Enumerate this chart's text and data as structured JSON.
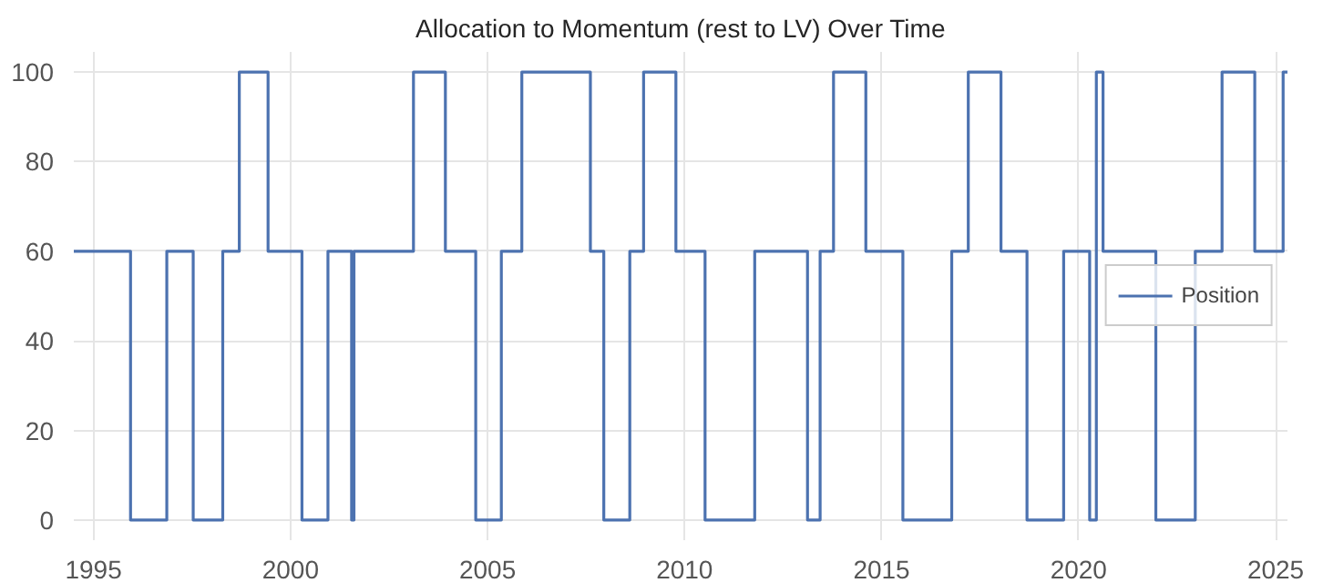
{
  "chart_data": {
    "type": "step",
    "title": "Allocation to Momentum (rest to LV) Over Time",
    "x": [
      1994.5,
      1995.94,
      1996.86,
      1997.53,
      1998.28,
      1998.7,
      1999.43,
      2000.29,
      2000.95,
      2001.55,
      2001.61,
      2003.12,
      2003.93,
      2004.7,
      2005.35,
      2005.87,
      2007.61,
      2007.95,
      2008.61,
      2008.96,
      2009.78,
      2010.52,
      2011.78,
      2013.12,
      2013.44,
      2013.78,
      2014.6,
      2015.54,
      2016.78,
      2017.2,
      2018.03,
      2018.69,
      2019.62,
      2020.28,
      2020.45,
      2020.62,
      2021.96,
      2022.96,
      2023.64,
      2024.47,
      2025.19,
      2025.3
    ],
    "series": [
      {
        "name": "Position",
        "color": "#4c72b0",
        "values": [
          60,
          0,
          60,
          0,
          60,
          100,
          60,
          0,
          60,
          0,
          60,
          100,
          60,
          0,
          60,
          100,
          60,
          0,
          60,
          100,
          60,
          0,
          60,
          0,
          60,
          100,
          60,
          0,
          60,
          100,
          60,
          0,
          60,
          0,
          100,
          60,
          0,
          60,
          100,
          60,
          100,
          100
        ]
      }
    ],
    "xlim": [
      1994.5,
      2025.3
    ],
    "xticks": [
      1995,
      2000,
      2005,
      2010,
      2015,
      2020,
      2025
    ],
    "ylim": [
      -4.5,
      104.5
    ],
    "yticks": [
      0,
      20,
      40,
      60,
      80,
      100
    ],
    "grid": true,
    "legend": "center right",
    "line_style": "solid"
  }
}
